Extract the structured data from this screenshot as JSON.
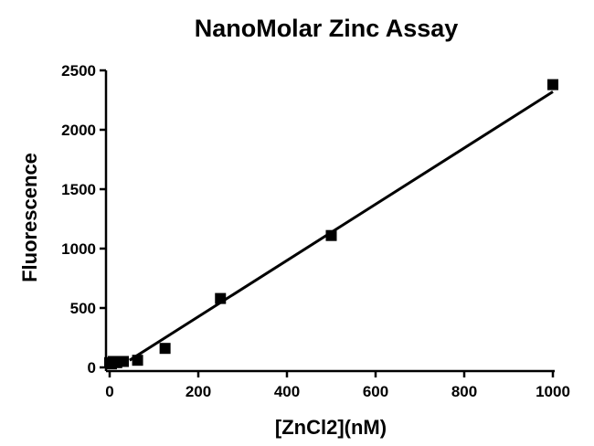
{
  "chart_data": {
    "type": "scatter",
    "title": "NanoMolar Zinc Assay",
    "xlabel": "[ZnCl2](nM)",
    "ylabel": "Fluorescence",
    "xlim": [
      0,
      1000
    ],
    "ylim": [
      0,
      2500
    ],
    "x_ticks": [
      0,
      200,
      400,
      600,
      800,
      1000
    ],
    "y_ticks": [
      0,
      500,
      1000,
      1500,
      2000,
      2500
    ],
    "x_tick_labels": [
      "0",
      "200",
      "400",
      "600",
      "800",
      "1000"
    ],
    "y_tick_labels": [
      "0",
      "500",
      "1000",
      "1500",
      "2000",
      "2500"
    ],
    "grid": false,
    "legend": "none",
    "series": [
      {
        "marker": "square",
        "color": "#000000",
        "points": [
          {
            "x": 0,
            "y": 40
          },
          {
            "x": 4,
            "y": 30
          },
          {
            "x": 8,
            "y": 50
          },
          {
            "x": 16,
            "y": 40
          },
          {
            "x": 31,
            "y": 50
          },
          {
            "x": 63,
            "y": 60
          },
          {
            "x": 125,
            "y": 160
          },
          {
            "x": 250,
            "y": 580
          },
          {
            "x": 500,
            "y": 1110
          },
          {
            "x": 1000,
            "y": 2380
          }
        ]
      }
    ],
    "fit_line": {
      "color": "#000000",
      "x_start": 45,
      "y_start": 60,
      "x_end": 1000,
      "y_end": 2320
    }
  }
}
